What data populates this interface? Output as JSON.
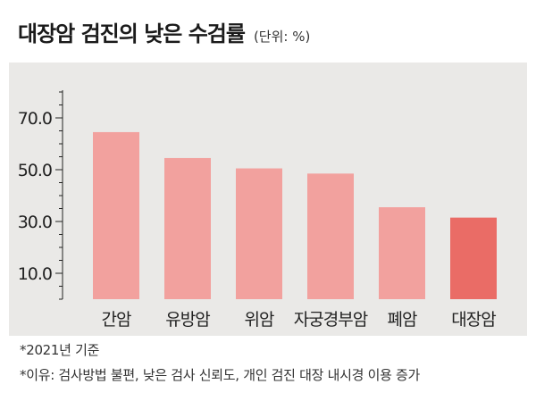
{
  "header": {
    "title": "대장암 검진의 낮은 수검률",
    "unit": "(단위: %)"
  },
  "chart_data": {
    "type": "bar",
    "categories": [
      "간암",
      "유방암",
      "위암",
      "자궁경부암",
      "폐암",
      "대장암"
    ],
    "values": [
      64.5,
      54.5,
      50.5,
      48.5,
      35.5,
      31.5
    ],
    "yticks": [
      "70.0",
      "50.0",
      "30.0",
      "10.0"
    ],
    "ylim": [
      0,
      80
    ],
    "grid": false,
    "colors": {
      "bar": "#f2a19e",
      "highlight": "#ea6c66",
      "panel": "#eae9e7"
    },
    "highlight_index": 5
  },
  "notes": [
    "*2021년 기준",
    "*이유: 검사방법 불편, 낮은 검사 신뢰도, 개인 검진 대장 내시경 이용 증가"
  ]
}
